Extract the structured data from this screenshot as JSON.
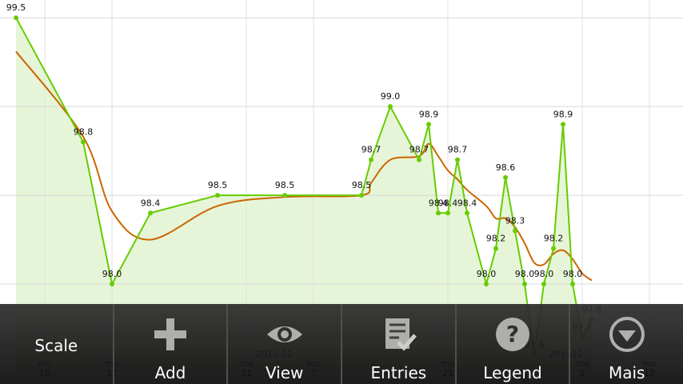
{
  "chart_data": {
    "type": "line",
    "x": [
      0,
      7,
      10,
      14,
      21,
      28,
      36,
      37,
      39,
      42,
      43,
      44,
      45,
      46,
      47,
      49,
      50,
      51,
      52,
      53,
      54,
      55,
      56,
      57,
      58,
      59,
      60
    ],
    "series": [
      {
        "color": "#66cc00",
        "values": [
          99.5,
          98.8,
          98.0,
          98.4,
          98.5,
          98.5,
          98.5,
          98.7,
          99.0,
          98.7,
          98.9,
          98.4,
          98.4,
          98.7,
          98.4,
          98.0,
          98.2,
          98.6,
          98.3,
          98.0,
          97.6,
          98.0,
          98.2,
          98.9,
          98.0,
          97.7,
          97.8
        ],
        "value_labels": [
          "99.5",
          "98.8",
          "98.0",
          "98.4",
          "98.5",
          "98.5",
          "98.5",
          "98.7",
          "99.0",
          "98.7",
          "98.9",
          "98.4",
          "98.4",
          "98.7",
          "98.4",
          "98.0",
          "98.2",
          "98.6",
          "98.3",
          "98.0",
          "97.6",
          "98.0",
          "98.2",
          "98.9",
          "98.0",
          "97.7",
          "97.8"
        ]
      },
      {
        "color": "#cc6600",
        "values": [
          99.31,
          98.83,
          98.41,
          98.25,
          98.44,
          98.49,
          98.5,
          98.57,
          98.7,
          98.72,
          98.79,
          98.72,
          98.64,
          98.59,
          98.53,
          98.44,
          98.37,
          98.37,
          98.32,
          98.23,
          98.12,
          98.11,
          98.17,
          98.19,
          98.14,
          98.06,
          98.02
        ]
      }
    ],
    "fill": "#e6f5d8",
    "xlim": [
      -1.67,
      69.5
    ],
    "xticks": [
      {
        "value": 3,
        "label": "mo\n10"
      },
      {
        "value": 10,
        "label": "mo\n17"
      },
      {
        "value": 24,
        "label": "mo\n31"
      },
      {
        "value": 31,
        "label": "mo\n7"
      },
      {
        "value": 45,
        "label": "mo\n21"
      },
      {
        "value": 59,
        "label": "mo\n5"
      },
      {
        "value": 66,
        "label": "mo\n12"
      }
    ],
    "month_labels": [
      {
        "x": 26.9,
        "label": "2011-11"
      },
      {
        "x": 57.3,
        "label": "201 -12"
      }
    ],
    "ylim": [
      97.5,
      99.6
    ],
    "yticks": [
      98.0,
      98.5,
      99.0,
      99.5
    ],
    "grid": true
  },
  "menu": {
    "items": [
      "Scale",
      "Add",
      "View",
      "Entries",
      "Legend",
      "Mais"
    ]
  }
}
